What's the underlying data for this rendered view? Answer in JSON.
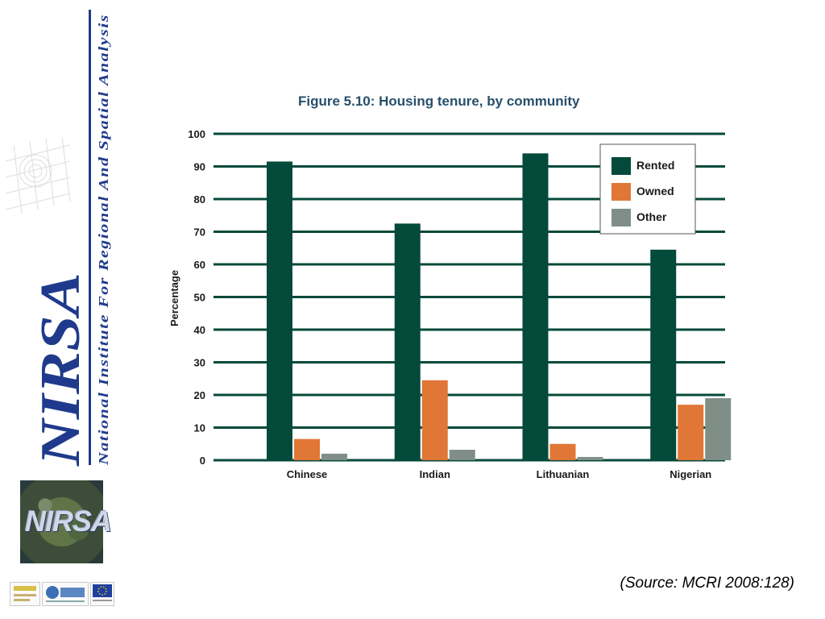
{
  "branding": {
    "vertical_title": "National Institute For Regional And Spatial Analysis",
    "logo_text": "NIRSA",
    "map_tile_text": "NIRSA",
    "footer_logo_names": [
      "hea-logo",
      "ndp-logo",
      "eu-flag-logo"
    ]
  },
  "source_note": "(Source: MCRI 2008:128)",
  "colors": {
    "rented": "#044a3b",
    "owned": "#e07736",
    "other": "#7f8f88",
    "gridline": "#044a3b",
    "brand_blue": "#1f3a8c"
  },
  "chart_data": {
    "type": "bar",
    "title": "Figure 5.10: Housing tenure, by community",
    "xlabel": "",
    "ylabel": "Percentage",
    "categories": [
      "Chinese",
      "Indian",
      "Lithuanian",
      "Nigerian"
    ],
    "series": [
      {
        "name": "Rented",
        "values": [
          91.5,
          72.5,
          94,
          64.5
        ]
      },
      {
        "name": "Owned",
        "values": [
          6.5,
          24.5,
          5,
          17
        ]
      },
      {
        "name": "Other",
        "values": [
          2,
          3.2,
          1,
          19
        ]
      }
    ],
    "ylim": [
      0,
      100
    ],
    "yticks": [
      0,
      10,
      20,
      30,
      40,
      50,
      60,
      70,
      80,
      90,
      100
    ],
    "grid": true,
    "legend_position": "top-right"
  }
}
